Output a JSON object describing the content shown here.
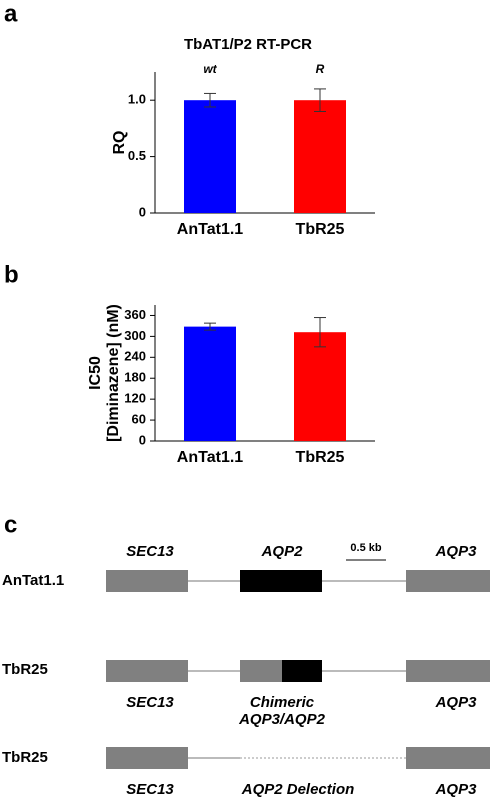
{
  "panels": [
    "a",
    "b",
    "c"
  ],
  "chart_data": [
    {
      "type": "bar",
      "title": "TbAT1/P2 RT-PCR",
      "ylabel": [
        "RQ"
      ],
      "categories": [
        "AnTat1.1",
        "TbR25"
      ],
      "values": [
        1.0,
        1.0
      ],
      "errors": [
        0.06,
        0.1
      ],
      "colors": [
        "#0000ff",
        "#ff0000"
      ],
      "annotations": [
        "wt",
        "R"
      ],
      "ylim": [
        0,
        1.25
      ],
      "yticks": [
        0,
        0.5,
        {
          "value": 1,
          "label": "1.0"
        }
      ]
    },
    {
      "type": "bar",
      "ylabel": [
        "IC50",
        "[Diminazene] (nM)"
      ],
      "categories": [
        "AnTat1.1",
        "TbR25"
      ],
      "values": [
        328,
        312
      ],
      "errors": [
        10,
        42
      ],
      "colors": [
        "#0000ff",
        "#ff0000"
      ],
      "ylim": [
        0,
        390
      ],
      "yticks": [
        0,
        60,
        120,
        180,
        240,
        300,
        360
      ]
    }
  ],
  "diagram": {
    "scale": "0.5 kb",
    "rows": [
      {
        "label": "AnTat1.1",
        "genes": [
          "SEC13",
          "AQP2",
          "AQP3"
        ]
      },
      {
        "label": "TbR25",
        "genes": [
          "SEC13",
          "Chimeric",
          "AQP3/AQP2",
          "AQP3"
        ]
      },
      {
        "label": "TbR25",
        "genes": [
          "SEC13",
          "AQP2 Delection",
          "AQP3"
        ]
      }
    ]
  }
}
